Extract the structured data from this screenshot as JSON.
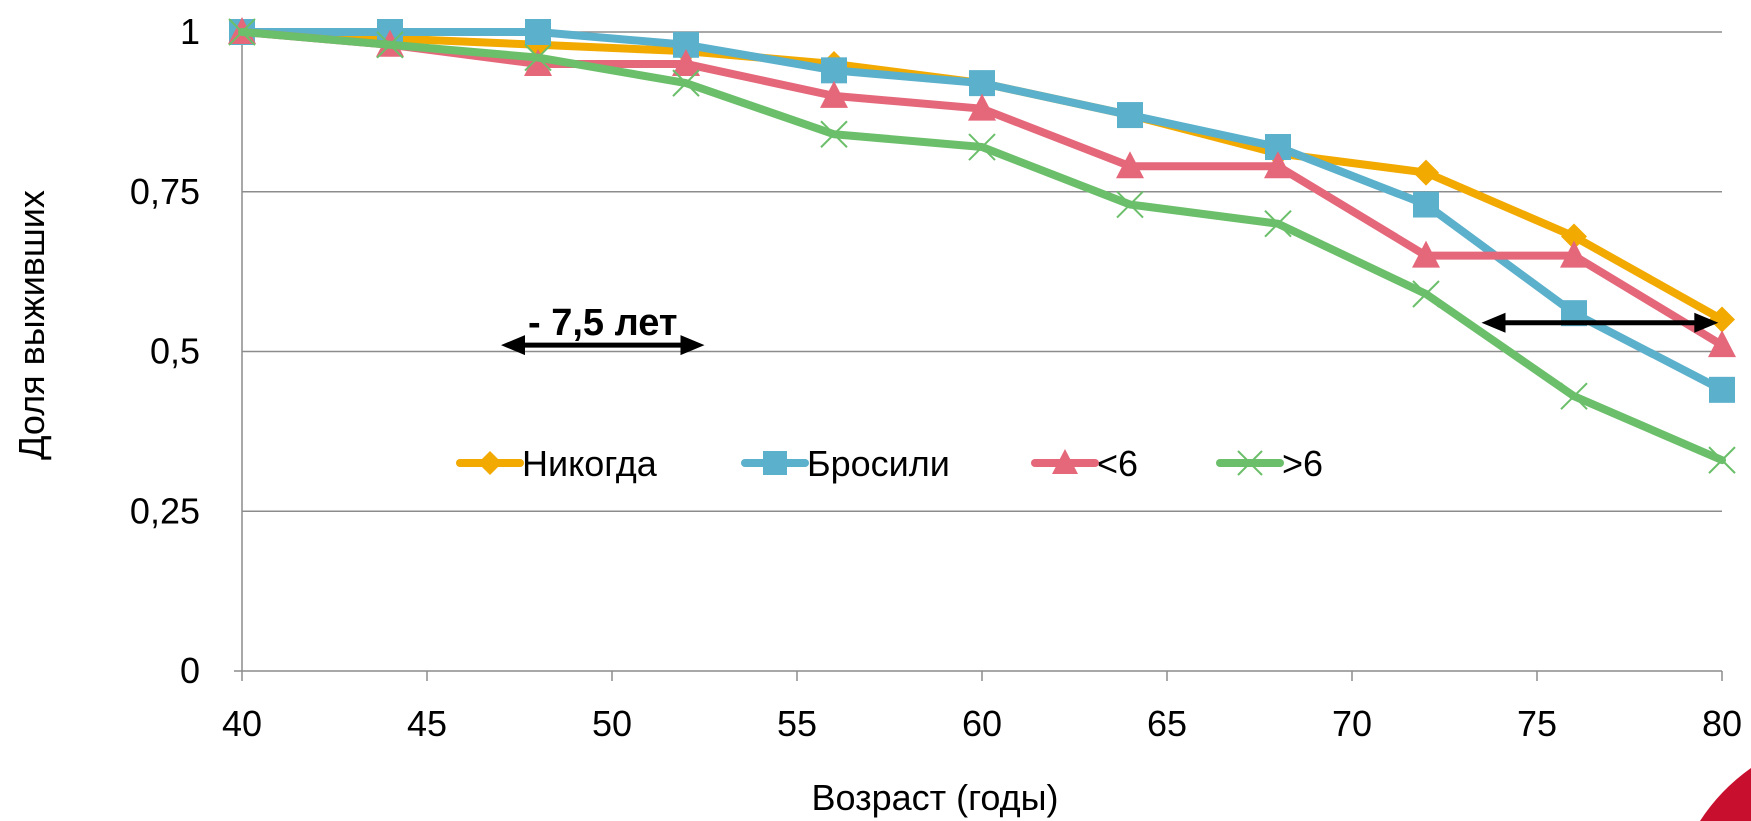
{
  "chart_data": {
    "type": "line",
    "title": "",
    "xlabel": "Возраст (годы)",
    "ylabel": "Доля выживших",
    "xlim": [
      40,
      80
    ],
    "ylim": [
      0,
      1
    ],
    "x_ticks": [
      40,
      45,
      50,
      55,
      60,
      65,
      70,
      75,
      80
    ],
    "y_ticks": [
      {
        "value": 0,
        "label": "0"
      },
      {
        "value": 0.25,
        "label": "0,25"
      },
      {
        "value": 0.5,
        "label": "0,5"
      },
      {
        "value": 0.75,
        "label": "0,75"
      },
      {
        "value": 1,
        "label": "1"
      }
    ],
    "grid": "horizontal",
    "legend_position": "center",
    "x": [
      40,
      44,
      48,
      52,
      56,
      60,
      64,
      68,
      72,
      76,
      80
    ],
    "series": [
      {
        "name": "Никогда",
        "color": "#F2A900",
        "marker": "diamond",
        "values": [
          1.0,
          0.99,
          0.98,
          0.97,
          0.95,
          0.92,
          0.87,
          0.81,
          0.78,
          0.68,
          0.55
        ]
      },
      {
        "name": "Бросили",
        "color": "#5BB0CC",
        "marker": "square",
        "values": [
          1.0,
          1.0,
          1.0,
          0.98,
          0.94,
          0.92,
          0.87,
          0.82,
          0.73,
          0.56,
          0.44
        ]
      },
      {
        "name": "<6",
        "color": "#E5677A",
        "marker": "triangle",
        "values": [
          1.0,
          0.98,
          0.95,
          0.95,
          0.9,
          0.88,
          0.79,
          0.79,
          0.65,
          0.65,
          0.51
        ]
      },
      {
        "name": ">6",
        "color": "#6BBF6A",
        "marker": "x",
        "values": [
          1.0,
          0.98,
          0.96,
          0.92,
          0.84,
          0.82,
          0.73,
          0.7,
          0.59,
          0.43,
          0.33
        ]
      }
    ],
    "annotations": [
      {
        "text": "- 7,5 лет",
        "arrow": "double",
        "x_from": 47,
        "x_to": 52.5,
        "y": 0.51
      },
      {
        "text": "",
        "arrow": "double",
        "x_from": 73.5,
        "x_to": 79.9,
        "y": 0.545
      }
    ]
  }
}
